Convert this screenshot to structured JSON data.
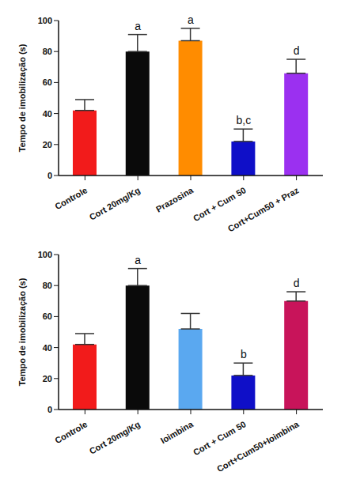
{
  "chart_data": [
    {
      "type": "bar",
      "ylabel": "Tempo de imobilização (s)",
      "categories": [
        "Controle",
        "Cort 20mg/Kg",
        "Prazosina",
        "Cort + Cum 50",
        "Cort+Cum50 + Praz"
      ],
      "values": [
        42,
        80,
        87,
        22,
        66
      ],
      "errors": [
        7,
        11,
        8,
        8,
        9
      ],
      "colors": [
        "#f21b1b",
        "#0a0a0a",
        "#ff8c00",
        "#0f0fc8",
        "#9b30f0"
      ],
      "annotations": [
        null,
        "a",
        "a",
        "b,c",
        "d"
      ],
      "ylim": [
        0,
        100
      ],
      "yticks": [
        0,
        20,
        40,
        60,
        80,
        100
      ]
    },
    {
      "type": "bar",
      "ylabel": "Tempo de imobilização (s)",
      "categories": [
        "Controle",
        "Cort 20mg/Kg",
        "Ioimbina",
        "Cort + Cum 50",
        "Cort+Cum50+Ioimbina"
      ],
      "values": [
        42,
        80,
        52,
        22,
        70
      ],
      "errors": [
        7,
        11,
        10,
        8,
        6
      ],
      "colors": [
        "#f21b1b",
        "#0a0a0a",
        "#5aa8f0",
        "#0f0fc8",
        "#c8145a"
      ],
      "annotations": [
        null,
        "a",
        null,
        "b",
        "d"
      ],
      "ylim": [
        0,
        100
      ],
      "yticks": [
        0,
        20,
        40,
        60,
        80,
        100
      ]
    }
  ]
}
